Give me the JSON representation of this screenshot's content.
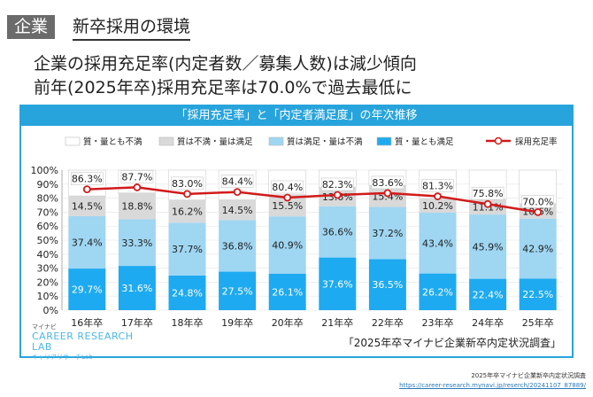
{
  "header": {
    "tag": "企業",
    "title": "新卒採用の環境"
  },
  "headline": {
    "line1": "企業の採用充足率(内定者数／募集人数)は減少傾向",
    "line2": "前年(2025年卒)採用充足率は70.0%で過去最低に"
  },
  "colors": {
    "accent": "#28a4dc",
    "both_unsatisfied": "#ffffff",
    "quality_unsatisfied": "#d9d9d9",
    "quantity_unsatisfied": "#9fd6f2",
    "both_satisfied": "#1eaaf0",
    "line": "#d21a1a"
  },
  "chart_data": {
    "type": "bar",
    "title": "「採用充足率」と「内定者満足度」の年次推移",
    "categories": [
      "16年卒",
      "17年卒",
      "18年卒",
      "19年卒",
      "20年卒",
      "21年卒",
      "22年卒",
      "23年卒",
      "24年卒",
      "25年卒"
    ],
    "ylim": [
      0,
      100
    ],
    "yticks": [
      "0%",
      "10%",
      "20%",
      "30%",
      "40%",
      "50%",
      "60%",
      "70%",
      "80%",
      "90%",
      "100%"
    ],
    "legend_position": "top",
    "series": [
      {
        "name": "質・量とも満足",
        "values": [
          29.7,
          31.6,
          24.8,
          27.5,
          26.1,
          37.6,
          36.5,
          26.2,
          22.4,
          22.5
        ],
        "labels": [
          "29.7%",
          "31.6%",
          "24.8%",
          "27.5%",
          "26.1%",
          "37.6%",
          "36.5%",
          "26.2%",
          "22.4%",
          "22.5%"
        ]
      },
      {
        "name": "質は満足・量は不満",
        "values": [
          37.4,
          33.3,
          37.7,
          36.8,
          40.9,
          36.6,
          37.2,
          43.4,
          45.9,
          42.9
        ],
        "labels": [
          "37.4%",
          "33.3%",
          "37.7%",
          "36.8%",
          "40.9%",
          "36.6%",
          "37.2%",
          "43.4%",
          "45.9%",
          "42.9%"
        ]
      },
      {
        "name": "質は不満・量は満足",
        "values": [
          14.5,
          18.8,
          16.2,
          14.5,
          15.5,
          13.6,
          15.4,
          10.2,
          11.1,
          10.6
        ],
        "labels": [
          "14.5%",
          "18.8%",
          "16.2%",
          "14.5%",
          "15.5%",
          "13.6%",
          "15.4%",
          "10.2%",
          "11.1%",
          "10.6%"
        ]
      },
      {
        "name": "質・量とも不満",
        "values": [
          18.4,
          16.3,
          21.3,
          21.2,
          17.5,
          12.2,
          10.9,
          20.2,
          20.6,
          24.0
        ]
      }
    ],
    "line_series": {
      "name": "採用充足率",
      "values": [
        86.3,
        87.7,
        83.0,
        84.4,
        80.4,
        82.3,
        83.6,
        81.3,
        75.8,
        70.0
      ],
      "labels": [
        "86.3%",
        "87.7%",
        "83.0%",
        "84.4%",
        "80.4%",
        "82.3%",
        "83.6%",
        "81.3%",
        "75.8%",
        "70.0%"
      ]
    },
    "source_note": "「2025年卒マイナビ企業新卒内定状況調査」"
  },
  "logo": {
    "ja": "マイナビ",
    "main1": "CAREER RESEARCH",
    "main2": "LAB",
    "sub": "キャリアリサーチLab"
  },
  "footer": {
    "source": "2025年卒マイナビ企業新卒内定状況調査",
    "url": "https://career-research.mynavi.jp/reserch/20241107_87889/"
  }
}
